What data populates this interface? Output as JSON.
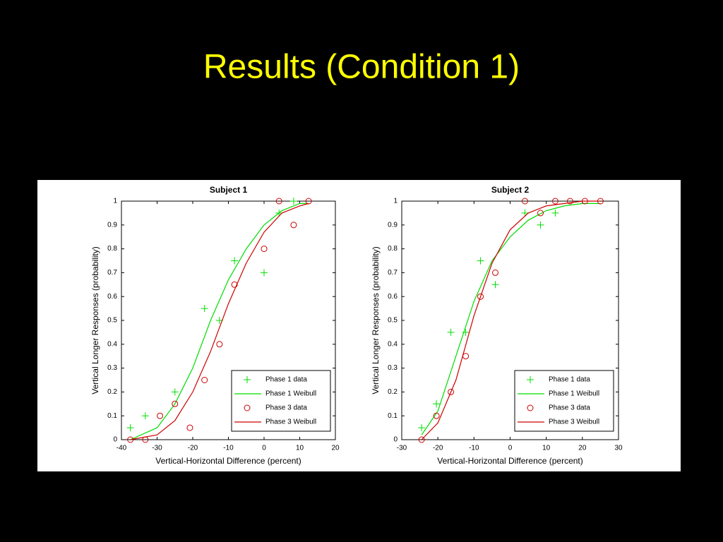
{
  "slide": {
    "title": "Results (Condition 1)"
  },
  "chart_data": [
    {
      "type": "scatter",
      "title": "Subject 1",
      "xlabel": "Vertical-Horizontal Difference (percent)",
      "ylabel": "Vertical Longer Responses (probability)",
      "xlim": [
        -40,
        20
      ],
      "xticks": [
        -40,
        -30,
        -20,
        -10,
        0,
        10,
        20
      ],
      "ylim": [
        0,
        1
      ],
      "yticks": [
        0,
        0.1,
        0.2,
        0.3,
        0.4,
        0.5,
        0.6,
        0.7,
        0.8,
        0.9,
        1
      ],
      "grid": false,
      "legend": "lower right",
      "series": [
        {
          "name": "Phase 1 data",
          "color": "#00dd00",
          "style": "plus",
          "x": [
            -37.5,
            -33.3,
            -25,
            -16.7,
            -12.5,
            -8.3,
            0,
            4.2,
            8.3
          ],
          "values": [
            0.05,
            0.1,
            0.2,
            0.55,
            0.5,
            0.75,
            0.7,
            0.95,
            1.0
          ]
        },
        {
          "name": "Phase 1 Weibull",
          "color": "#00dd00",
          "style": "line",
          "x": [
            -37.5,
            -30,
            -25,
            -20,
            -15,
            -10,
            -5,
            0,
            5,
            10,
            12.5
          ],
          "values": [
            0.0,
            0.05,
            0.15,
            0.3,
            0.5,
            0.67,
            0.8,
            0.9,
            0.96,
            0.99,
            0.99
          ]
        },
        {
          "name": "Phase 3 data",
          "color": "#cc0000",
          "style": "circle",
          "x": [
            -37.5,
            -33.3,
            -29.2,
            -25,
            -20.8,
            -16.7,
            -12.5,
            -8.3,
            0,
            4.2,
            8.3,
            12.5
          ],
          "values": [
            0,
            0,
            0.1,
            0.15,
            0.05,
            0.25,
            0.4,
            0.65,
            0.8,
            1.0,
            0.9,
            1.0
          ]
        },
        {
          "name": "Phase 3 Weibull",
          "color": "#cc0000",
          "style": "line",
          "x": [
            -37.5,
            -30,
            -25,
            -20,
            -15,
            -10,
            -5,
            0,
            5,
            10,
            12.5
          ],
          "values": [
            0.0,
            0.02,
            0.08,
            0.2,
            0.37,
            0.57,
            0.74,
            0.87,
            0.95,
            0.98,
            0.99
          ]
        }
      ]
    },
    {
      "type": "scatter",
      "title": "Subject 2",
      "xlabel": "Vertical-Horizontal Difference (percent)",
      "ylabel": "Vertical Longer Responses (probability)",
      "xlim": [
        -30,
        30
      ],
      "xticks": [
        -30,
        -20,
        -10,
        0,
        10,
        20,
        30
      ],
      "ylim": [
        0,
        1
      ],
      "yticks": [
        0,
        0.1,
        0.2,
        0.3,
        0.4,
        0.5,
        0.6,
        0.7,
        0.8,
        0.9,
        1
      ],
      "grid": false,
      "legend": "lower right",
      "series": [
        {
          "name": "Phase 1 data",
          "color": "#00dd00",
          "style": "plus",
          "x": [
            -24.5,
            -20.4,
            -16.4,
            -12.3,
            -8.2,
            -4.1,
            4.1,
            8.4,
            12.5
          ],
          "values": [
            0.05,
            0.15,
            0.45,
            0.45,
            0.75,
            0.65,
            0.95,
            0.9,
            0.95
          ]
        },
        {
          "name": "Phase 1 Weibull",
          "color": "#00dd00",
          "style": "line",
          "x": [
            -24.5,
            -20,
            -15,
            -10,
            -5,
            0,
            5,
            10,
            15,
            20,
            25
          ],
          "values": [
            0.02,
            0.12,
            0.35,
            0.58,
            0.75,
            0.85,
            0.92,
            0.96,
            0.98,
            0.99,
            0.99
          ]
        },
        {
          "name": "Phase 3 data",
          "color": "#cc0000",
          "style": "circle",
          "x": [
            -24.5,
            -20.4,
            -16.4,
            -12.3,
            -8.2,
            -4.1,
            4.1,
            8.4,
            12.5,
            16.6,
            20.7,
            25
          ],
          "values": [
            0,
            0.1,
            0.2,
            0.35,
            0.6,
            0.7,
            1.0,
            0.95,
            1.0,
            1.0,
            1.0,
            1.0
          ]
        },
        {
          "name": "Phase 3 Weibull",
          "color": "#cc0000",
          "style": "line",
          "x": [
            -24.5,
            -20,
            -15,
            -10,
            -5,
            0,
            5,
            10,
            15,
            20,
            25
          ],
          "values": [
            0.0,
            0.07,
            0.25,
            0.52,
            0.74,
            0.88,
            0.95,
            0.98,
            0.99,
            1.0,
            1.0
          ]
        }
      ]
    }
  ]
}
